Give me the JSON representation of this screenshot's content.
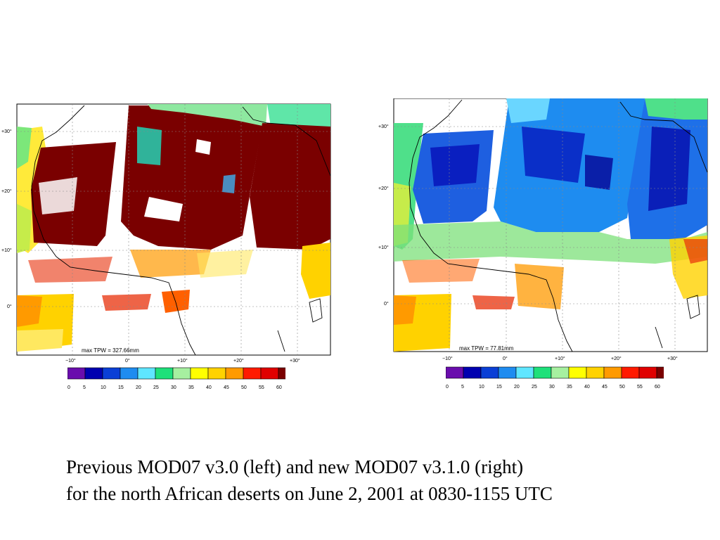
{
  "panels": [
    {
      "id": "left",
      "version": "MOD07 v3.0",
      "annotation": "max TPW = 327.66mm",
      "lat_labels": [
        "+30°",
        "+20°",
        "+10°",
        "0°"
      ],
      "lon_labels": [
        "−10°",
        "0°",
        "+10°",
        "+20°",
        "+30°"
      ],
      "dominant_field": "dark-red"
    },
    {
      "id": "right",
      "version": "MOD07 v3.1.0",
      "annotation": "max TPW = 77.81mm",
      "lat_labels": [
        "+30°",
        "+20°",
        "+10°",
        "0°"
      ],
      "lon_labels": [
        "−10°",
        "0°",
        "+10°",
        "+20°",
        "+30°"
      ],
      "dominant_field": "blue"
    }
  ],
  "colorbar": {
    "ticks": [
      "0",
      "5",
      "10",
      "15",
      "20",
      "25",
      "30",
      "35",
      "40",
      "45",
      "50",
      "55",
      "60"
    ],
    "colors": [
      "#6a0dad",
      "#0000b0",
      "#0a3fd6",
      "#1e8cf0",
      "#5fe6ff",
      "#1ee07a",
      "#a6f0a0",
      "#ffff00",
      "#ffd200",
      "#ff9a00",
      "#ff1a00",
      "#e00000",
      "#7a0000"
    ]
  },
  "caption": {
    "line1": "Previous MOD07 v3.0 (left) and new MOD07 v3.1.0 (right)",
    "line2": "for the north African deserts on June 2, 2001 at 0830-1155 UTC"
  }
}
